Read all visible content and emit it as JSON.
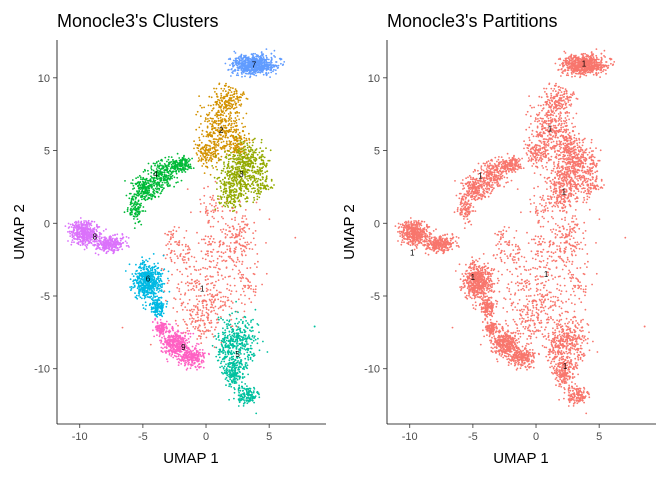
{
  "chart_data": [
    {
      "type": "scatter",
      "title": "Monocle3's Clusters",
      "xlabel": "UMAP 1",
      "ylabel": "UMAP 2",
      "xlim": [
        -11.8,
        9.5
      ],
      "ylim": [
        -13.8,
        12.6
      ],
      "x_ticks": [
        -10,
        -5,
        0,
        5
      ],
      "y_ticks": [
        -10,
        -5,
        0,
        5,
        10
      ],
      "grid": false,
      "legend": "none",
      "clusters": [
        {
          "label": "1",
          "color": "#F8766D",
          "center": [
            -0.3,
            -4.5
          ],
          "blobs": [
            [
              1.5,
              -1.5,
              2.6,
              2.4,
              0.24
            ],
            [
              -0.5,
              -4.5,
              2.6,
              2.0,
              0.22
            ],
            [
              -0.3,
              -7.0,
              1.6,
              1.2,
              0.12
            ],
            [
              2.8,
              -1.0,
              1.0,
              1.6,
              0.1
            ],
            [
              -2.0,
              -2.2,
              1.0,
              1.0,
              0.06
            ],
            [
              0.8,
              -5.6,
              1.8,
              1.0,
              0.1
            ],
            [
              -2.6,
              -1.0,
              0.7,
              0.9,
              0.04
            ],
            [
              3.3,
              -4.2,
              0.8,
              1.0,
              0.06
            ],
            [
              0.3,
              1.2,
              0.9,
              1.0,
              0.06
            ]
          ]
        },
        {
          "label": "2",
          "color": "#D39200",
          "center": [
            1.2,
            6.4
          ],
          "blobs": [
            [
              1.2,
              6.6,
              1.6,
              1.6,
              0.45
            ],
            [
              1.8,
              8.6,
              1.0,
              0.8,
              0.2
            ],
            [
              0.2,
              4.9,
              0.9,
              0.9,
              0.2
            ],
            [
              2.5,
              5.4,
              0.9,
              0.9,
              0.15
            ]
          ]
        },
        {
          "label": "3",
          "color": "#93AA00",
          "center": [
            2.8,
            3.4
          ],
          "blobs": [
            [
              2.8,
              3.4,
              1.6,
              1.4,
              0.55
            ],
            [
              3.6,
              4.5,
              1.2,
              0.9,
              0.2
            ],
            [
              2.0,
              1.8,
              1.0,
              0.8,
              0.15
            ],
            [
              4.3,
              2.6,
              0.7,
              0.8,
              0.1
            ]
          ]
        },
        {
          "label": "4",
          "color": "#00BA38",
          "center": [
            -4.0,
            3.4
          ],
          "blobs": [
            [
              -4.8,
              2.4,
              1.0,
              0.8,
              0.35
            ],
            [
              -3.4,
              3.4,
              1.0,
              0.9,
              0.3
            ],
            [
              -2.0,
              4.0,
              0.8,
              0.5,
              0.2
            ],
            [
              -5.6,
              1.0,
              0.6,
              0.8,
              0.15
            ]
          ]
        },
        {
          "label": "5",
          "color": "#00C19F",
          "center": [
            2.5,
            -9.0
          ],
          "blobs": [
            [
              2.6,
              -8.0,
              1.2,
              1.6,
              0.45
            ],
            [
              2.2,
              -10.2,
              0.8,
              1.0,
              0.25
            ],
            [
              3.2,
              -11.8,
              0.8,
              0.6,
              0.2
            ],
            [
              1.4,
              -8.8,
              0.5,
              0.8,
              0.1
            ]
          ]
        },
        {
          "label": "6",
          "color": "#00B9E3",
          "center": [
            -4.6,
            -3.8
          ],
          "blobs": [
            [
              -4.6,
              -4.0,
              1.0,
              1.1,
              0.8
            ],
            [
              -3.8,
              -5.8,
              0.5,
              0.6,
              0.2
            ]
          ]
        },
        {
          "label": "7",
          "color": "#619CFF",
          "center": [
            3.8,
            10.9
          ],
          "blobs": [
            [
              3.8,
              10.9,
              1.5,
              0.6,
              1.0
            ]
          ]
        },
        {
          "label": "8",
          "color": "#DB72FB",
          "center": [
            -8.8,
            -0.9
          ],
          "blobs": [
            [
              -9.6,
              -0.7,
              1.0,
              0.7,
              0.6
            ],
            [
              -7.6,
              -1.4,
              1.0,
              0.5,
              0.4
            ]
          ]
        },
        {
          "label": "9",
          "color": "#FF61C3",
          "center": [
            -1.8,
            -8.5
          ],
          "blobs": [
            [
              -2.4,
              -8.3,
              1.0,
              0.8,
              0.5
            ],
            [
              -1.2,
              -9.2,
              1.0,
              0.6,
              0.3
            ],
            [
              -3.6,
              -7.2,
              0.5,
              0.5,
              0.2
            ]
          ]
        }
      ]
    },
    {
      "type": "scatter",
      "title": "Monocle3's Partitions",
      "xlabel": "UMAP 1",
      "ylabel": "UMAP 2",
      "xlim": [
        -11.8,
        9.5
      ],
      "ylim": [
        -13.8,
        12.6
      ],
      "x_ticks": [
        -10,
        -5,
        0,
        5
      ],
      "y_ticks": [
        -10,
        -5,
        0,
        5,
        10
      ],
      "grid": false,
      "legend": "none",
      "partitions": [
        {
          "label": "1",
          "color": "#F8766D"
        }
      ],
      "label_positions": [
        [
          3.8,
          11.0
        ],
        [
          1.1,
          6.5
        ],
        [
          2.2,
          2.2
        ],
        [
          -4.4,
          3.3
        ],
        [
          -9.8,
          -2.0
        ],
        [
          -5.0,
          -3.7
        ],
        [
          0.8,
          -3.5
        ],
        [
          2.3,
          -9.8
        ]
      ]
    }
  ]
}
